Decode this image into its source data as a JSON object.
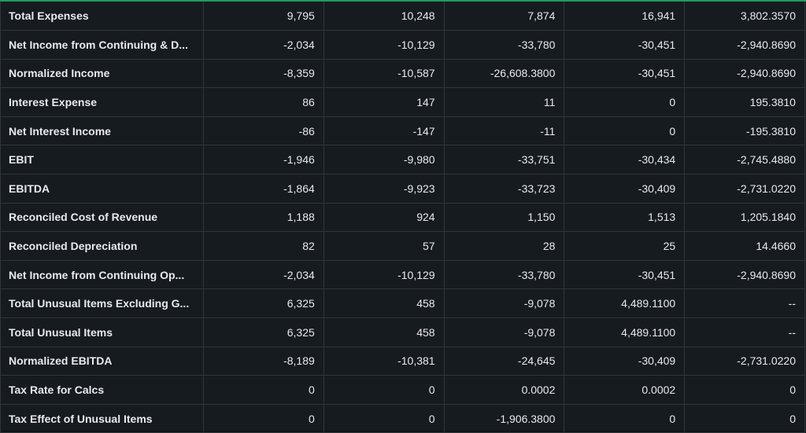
{
  "table": {
    "rows": [
      {
        "label": "Total Expenses",
        "values": [
          "9,795",
          "10,248",
          "7,874",
          "16,941",
          "3,802.3570"
        ]
      },
      {
        "label": "Net Income from Continuing & D...",
        "values": [
          "-2,034",
          "-10,129",
          "-33,780",
          "-30,451",
          "-2,940.8690"
        ]
      },
      {
        "label": "Normalized Income",
        "values": [
          "-8,359",
          "-10,587",
          "-26,608.3800",
          "-30,451",
          "-2,940.8690"
        ]
      },
      {
        "label": "Interest Expense",
        "values": [
          "86",
          "147",
          "11",
          "0",
          "195.3810"
        ]
      },
      {
        "label": "Net Interest Income",
        "values": [
          "-86",
          "-147",
          "-11",
          "0",
          "-195.3810"
        ]
      },
      {
        "label": "EBIT",
        "values": [
          "-1,946",
          "-9,980",
          "-33,751",
          "-30,434",
          "-2,745.4880"
        ]
      },
      {
        "label": "EBITDA",
        "values": [
          "-1,864",
          "-9,923",
          "-33,723",
          "-30,409",
          "-2,731.0220"
        ]
      },
      {
        "label": "Reconciled Cost of Revenue",
        "values": [
          "1,188",
          "924",
          "1,150",
          "1,513",
          "1,205.1840"
        ]
      },
      {
        "label": "Reconciled Depreciation",
        "values": [
          "82",
          "57",
          "28",
          "25",
          "14.4660"
        ]
      },
      {
        "label": "Net Income from Continuing Op...",
        "values": [
          "-2,034",
          "-10,129",
          "-33,780",
          "-30,451",
          "-2,940.8690"
        ]
      },
      {
        "label": "Total Unusual Items Excluding G...",
        "values": [
          "6,325",
          "458",
          "-9,078",
          "4,489.1100",
          "--"
        ]
      },
      {
        "label": "Total Unusual Items",
        "values": [
          "6,325",
          "458",
          "-9,078",
          "4,489.1100",
          "--"
        ]
      },
      {
        "label": "Normalized EBITDA",
        "values": [
          "-8,189",
          "-10,381",
          "-24,645",
          "-30,409",
          "-2,731.0220"
        ]
      },
      {
        "label": "Tax Rate for Calcs",
        "values": [
          "0",
          "0",
          "0.0002",
          "0.0002",
          "0"
        ]
      },
      {
        "label": "Tax Effect of Unusual Items",
        "values": [
          "0",
          "0",
          "-1,906.3800",
          "0",
          "0"
        ]
      }
    ]
  },
  "colors": {
    "background": "#161b1f",
    "grid": "#30363b",
    "text": "#e8eaed",
    "accent": "#1e9a63"
  }
}
